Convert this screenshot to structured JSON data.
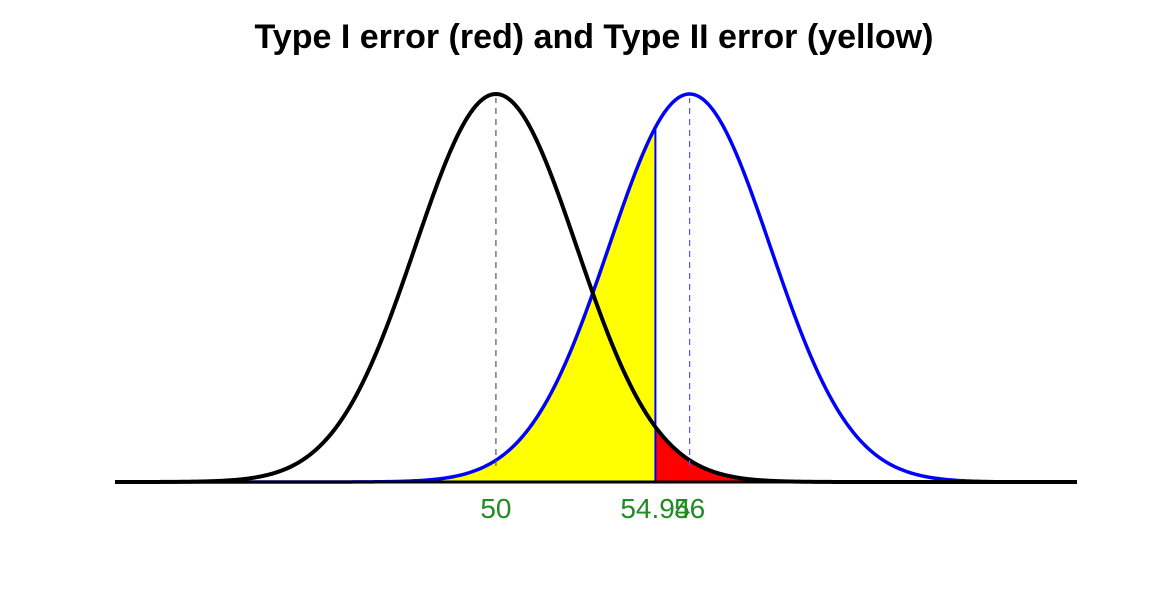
{
  "chart_data": {
    "type": "area",
    "title": "Type I error (red) and Type II error (yellow)",
    "xlabel": "",
    "ylabel": "",
    "distributions": [
      {
        "mean": 50,
        "sd": 2.5,
        "color": "#000000",
        "mean_line_color": "#555555"
      },
      {
        "mean": 56,
        "sd": 2.5,
        "color": "#0000ff",
        "mean_line_color": "#5555ff"
      }
    ],
    "critical_value": 54.94,
    "regions": [
      {
        "fill": "#ff0000"
      },
      {
        "fill": "#ffff00"
      }
    ],
    "xlim": [
      38.2,
      68.0
    ],
    "tick_labels": [
      {
        "value": 50,
        "label": "50"
      },
      {
        "value": 54.94,
        "label": "54.94"
      },
      {
        "value": 56,
        "label": "56"
      }
    ],
    "tick_label_color": "#228b22",
    "grid": false
  }
}
